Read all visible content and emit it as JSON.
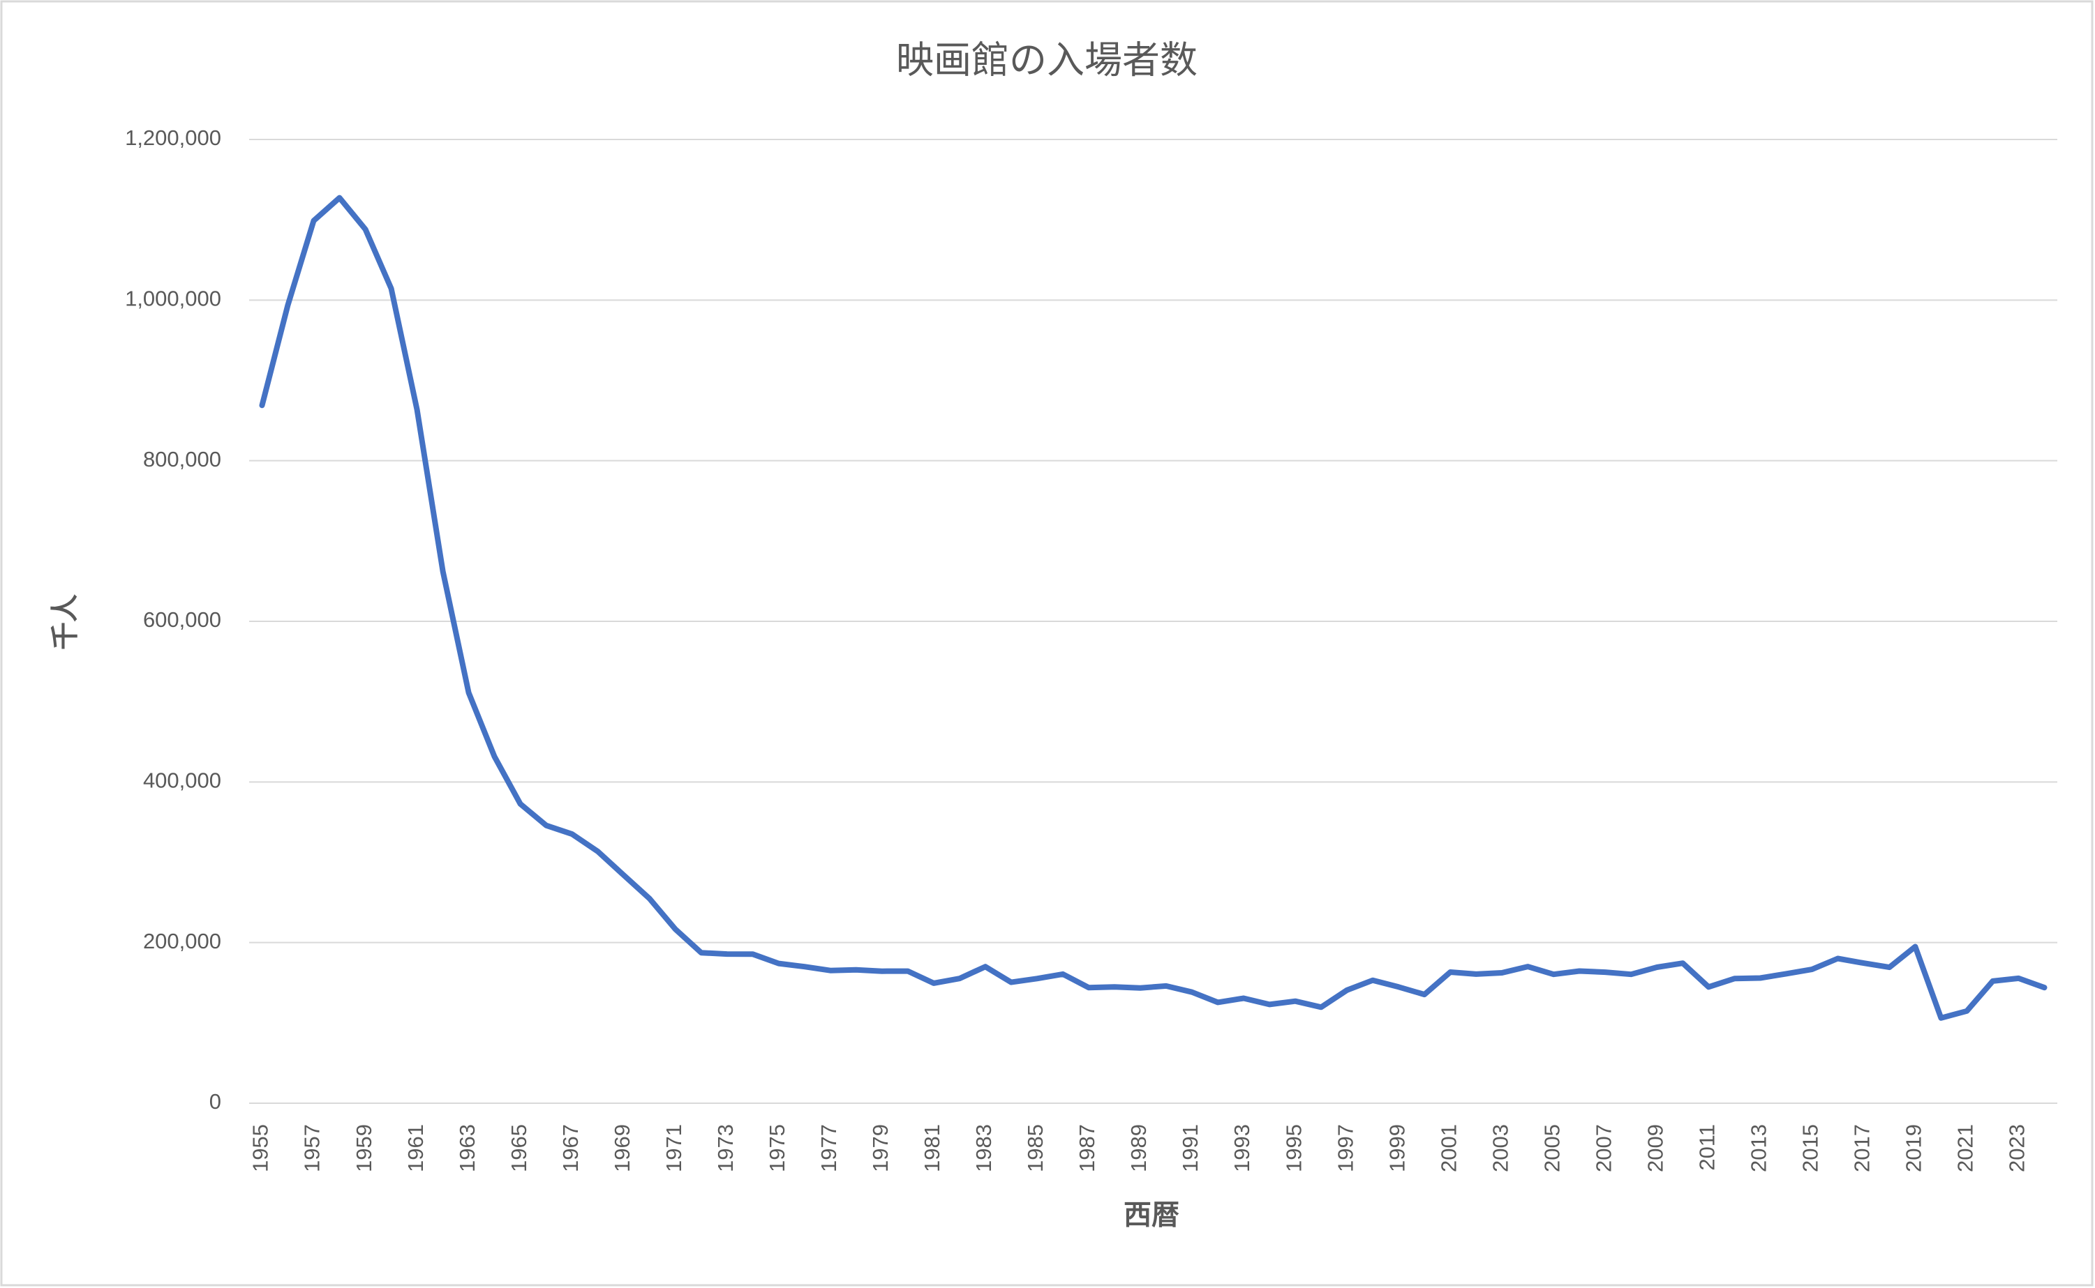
{
  "chart_data": {
    "type": "line",
    "title": "映画館の入場者数",
    "x_label": "西暦",
    "y_label": "千人",
    "categories": [
      "1955",
      null,
      "1957",
      null,
      "1959",
      null,
      "1961",
      null,
      "1963",
      null,
      "1965",
      null,
      "1967",
      null,
      "1969",
      null,
      "1971",
      null,
      "1973",
      null,
      "1975",
      null,
      "1977",
      null,
      "1979",
      null,
      "1981",
      null,
      "1983",
      null,
      "1985",
      null,
      "1987",
      null,
      "1989",
      null,
      "1991",
      null,
      "1993",
      null,
      "1995",
      null,
      "1997",
      null,
      "1999",
      null,
      "2001",
      null,
      "2003",
      null,
      "2005",
      null,
      "2007",
      null,
      "2009",
      null,
      "2011",
      null,
      "2013",
      null,
      "2015",
      null,
      "2017",
      null,
      "2019",
      null,
      "2021",
      null,
      "2023",
      null
    ],
    "series": [
      {
        "name": "千人",
        "color": "#4472c4",
        "values": [
          868912,
          993875,
          1098882,
          1127452,
          1088111,
          1014364,
          863430,
          662279,
          511121,
          431454,
          372676,
          345811,
          335067,
          313398,
          283980,
          254799,
          216754,
          187381,
          185738,
          185552,
          174020,
          170019,
          165196,
          166042,
          164366,
          164422,
          149450,
          155277,
          170043,
          150527,
          155130,
          160760,
          143935,
          144825,
          143573,
          146000,
          138330,
          125600,
          130720,
          122990,
          127040,
          119575,
          140719,
          153102,
          144762,
          135390,
          163280,
          160767,
          162347,
          170092,
          160453,
          164585,
          163193,
          160491,
          169297,
          174358,
          144726,
          155159,
          155888,
          161116,
          166630,
          180189,
          174483,
          169210,
          194910,
          106137,
          114818,
          152005,
          155481,
          144000
        ]
      }
    ],
    "ylim": [
      0,
      1200000
    ],
    "yticks": [
      0,
      {
        "value": 200000,
        "label": "200,000"
      },
      {
        "value": 400000,
        "label": "400,000"
      },
      {
        "value": 600000,
        "label": "600,000"
      },
      {
        "value": 800000,
        "label": "800,000"
      },
      {
        "value": 1000000,
        "label": "1,000,000"
      },
      {
        "value": 1200000,
        "label": "1,200,000"
      }
    ],
    "grid": true
  }
}
